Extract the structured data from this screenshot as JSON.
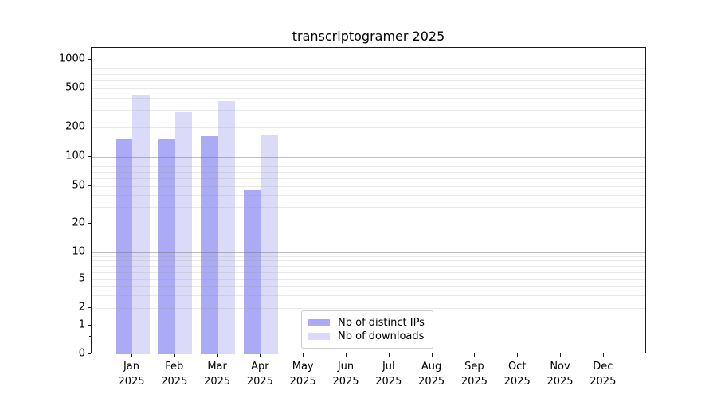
{
  "title": "transcriptogramer 2025",
  "chart_data": {
    "type": "bar",
    "title": "transcriptogramer 2025",
    "categories": [
      "Jan",
      "Feb",
      "Mar",
      "Apr",
      "May",
      "Jun",
      "Jul",
      "Aug",
      "Sep",
      "Oct",
      "Nov",
      "Dec"
    ],
    "year_label": "2025",
    "series": [
      {
        "name": "Nb of distinct IPs",
        "color": "#aaaaf5",
        "values": [
          150,
          150,
          163,
          45,
          null,
          null,
          null,
          null,
          null,
          null,
          null,
          null
        ]
      },
      {
        "name": "Nb of downloads",
        "color": "#dbdbf9",
        "values": [
          430,
          285,
          370,
          168,
          null,
          null,
          null,
          null,
          null,
          null,
          null,
          null
        ]
      }
    ],
    "yscale": "symlog",
    "yticks": [
      0,
      1,
      2,
      5,
      10,
      20,
      50,
      100,
      200,
      500,
      1000
    ],
    "ylim": [
      0,
      1300
    ],
    "grid": true,
    "legend_position": "inside-bottom-center"
  },
  "colors": {
    "ips_bar": "#aaaaf5",
    "downloads_bar": "#dbdbf9",
    "major_grid": "#b3b3b3",
    "minor_grid": "#e4e4e4",
    "axis": "#1a1a1a",
    "background": "#ffffff"
  }
}
